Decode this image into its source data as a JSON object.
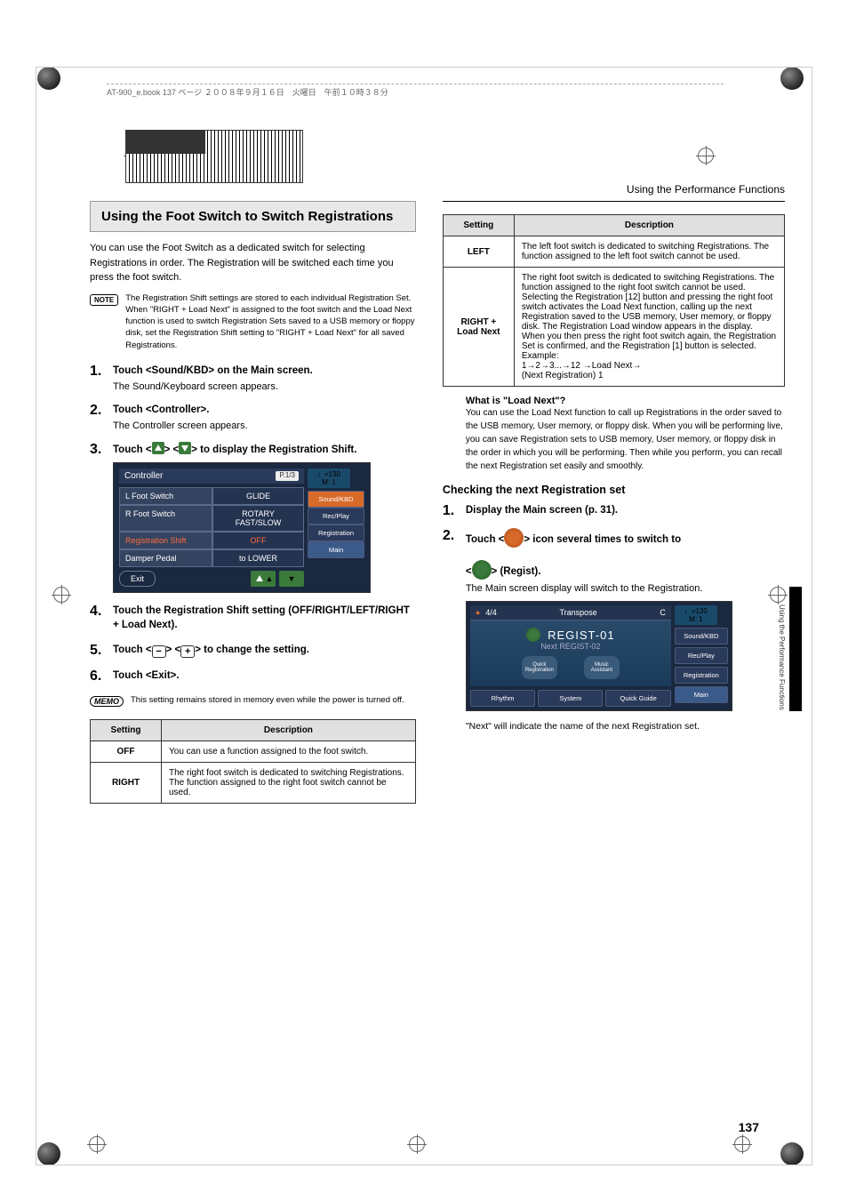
{
  "meta": {
    "header": "AT-900_e.book  137 ページ  ２００８年９月１６日　火曜日　午前１０時３８分",
    "page_number": "137",
    "section_running_head": "Using the Performance Functions",
    "side_tab": "Using the Performance Functions"
  },
  "left": {
    "title": "Using the Foot Switch to Switch Registrations",
    "intro": "You can use the Foot Switch as a dedicated switch for selecting Registrations in order. The Registration will be switched each time you press the foot switch.",
    "note_label": "NOTE",
    "note": "The Registration Shift settings are stored to each individual Registration Set. When \"RIGHT + Load Next\" is assigned to the foot switch and the Load Next function is used to switch Registration Sets saved to a USB memory or floppy disk, set the Registration Shift setting to \"RIGHT + Load Next\" for all saved Registrations.",
    "steps": [
      {
        "head": "Touch <Sound/KBD> on the Main screen.",
        "body": "The Sound/Keyboard screen appears."
      },
      {
        "head": "Touch <Controller>.",
        "body": "The Controller screen appears."
      },
      {
        "head_pre": "Touch <",
        "head_mid": "> <",
        "head_post": "> to display the Registration Shift."
      },
      {
        "head": "Touch the Registration Shift setting (OFF/RIGHT/LEFT/RIGHT + Load Next)."
      },
      {
        "head_pre": "Touch <",
        "head_mid": "> <",
        "head_post": "> to change the setting."
      },
      {
        "head": "Touch <Exit>."
      }
    ],
    "memo_label": "MEMO",
    "memo": "This setting remains stored in memory even while the power is turned off.",
    "controller_screenshot": {
      "title": "Controller",
      "page_indicator": "P.1/3",
      "tempo": "♩=130",
      "tempo_sub": "M:    1",
      "rows": [
        {
          "label": "L Foot Switch",
          "value": "GLIDE"
        },
        {
          "label": "R Foot Switch",
          "value": "ROTARY FAST/SLOW"
        },
        {
          "label": "Registration Shift",
          "value": "OFF",
          "highlight": true
        },
        {
          "label": "Damper Pedal",
          "value": "to LOWER"
        }
      ],
      "side_buttons": [
        "Sound/KBD",
        "Rec/Play",
        "Registration",
        "Main"
      ],
      "exit": "Exit"
    },
    "settings_table": {
      "headers": [
        "Setting",
        "Description"
      ],
      "rows": [
        {
          "key": "OFF",
          "desc": "You can use a function assigned to the foot switch."
        },
        {
          "key": "RIGHT",
          "desc": "The right foot switch is dedicated to switching Registrations. The function assigned to the right foot switch cannot be used."
        }
      ]
    }
  },
  "right": {
    "settings_table": {
      "headers": [
        "Setting",
        "Description"
      ],
      "rows": [
        {
          "key": "LEFT",
          "desc": "The left foot switch is dedicated to switching Registrations. The function assigned to the left foot switch cannot be used."
        },
        {
          "key": "RIGHT + Load Next",
          "desc": "The right foot switch is dedicated to switching Registrations. The function assigned to the right foot switch cannot be used.\nSelecting the Registration [12] button and pressing the right foot switch activates the Load Next function, calling up the next Registration saved to the USB memory, User memory, or floppy disk. The Registration Load window appears in the display. When you then press the right foot switch again, the Registration Set is confirmed, and the Registration [1] button is selected.\nExample:\n1→2→3...→12 →Load Next→\n(Next Registration) 1"
        }
      ]
    },
    "loadnext_title": "What is \"Load Next\"?",
    "loadnext_body": "You can use the Load Next function to call up Registrations in the order saved to the USB memory, User memory, or floppy disk. When you will be performing live, you can save Registration sets to USB memory, User memory, or floppy disk in the order in which you will be performing. Then while you perform, you can recall the next Registration set easily and smoothly.",
    "checking_title": "Checking the next Registration set",
    "steps": [
      {
        "head": "Display the Main screen (p. 31)."
      },
      {
        "head_pre": "Touch <",
        "head_mid": "> icon several times to switch to",
        "line2_pre": "<",
        "line2_post": "> (Regist)."
      }
    ],
    "after_steps": "The Main screen display will switch to the Registration.",
    "main_screenshot": {
      "top": {
        "time_sig": "4/4",
        "transpose_label": "Transpose",
        "transpose_val": "C",
        "tempo": "♩=130",
        "tempo_sub": "M:    1"
      },
      "regist": "REGIST-01",
      "next": "Next  REGIST-02",
      "chips": [
        "Quick Registration",
        "Music Assistant"
      ],
      "side_buttons": [
        "Sound/KBD",
        "Rec/Play",
        "Registration",
        "Main"
      ],
      "bottom_buttons": [
        "Rhythm",
        "System",
        "Quick Guide"
      ]
    },
    "closing": "\"Next\" will indicate the name of the next Registration set."
  }
}
